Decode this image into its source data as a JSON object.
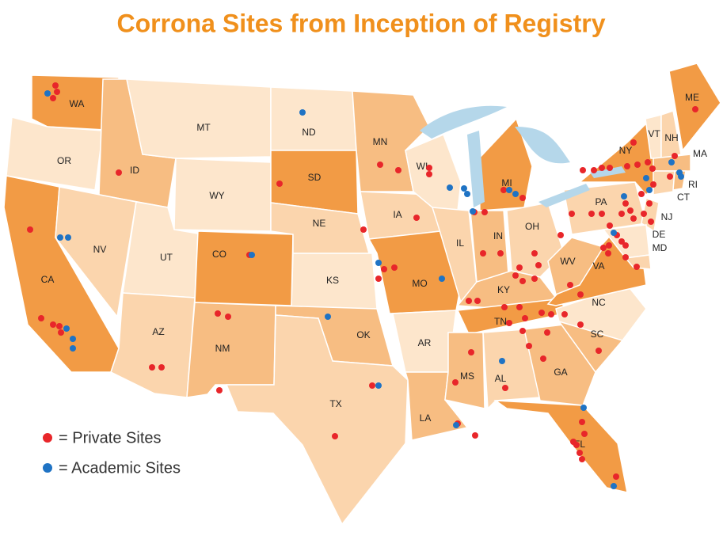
{
  "title": "Corrona Sites from Inception of Registry",
  "states": [
    "WA",
    "OR",
    "CA",
    "ID",
    "NV",
    "MT",
    "WY",
    "UT",
    "AZ",
    "CO",
    "NM",
    "ND",
    "SD",
    "NE",
    "KS",
    "OK",
    "TX",
    "MN",
    "IA",
    "MO",
    "AR",
    "LA",
    "WI",
    "IL",
    "MI",
    "IN",
    "OH",
    "KY",
    "TN",
    "MS",
    "AL",
    "GA",
    "FL",
    "SC",
    "NC",
    "VA",
    "WV",
    "PA",
    "NY",
    "NJ",
    "DE",
    "MD",
    "VT",
    "NH",
    "ME",
    "MA",
    "CT",
    "RI"
  ],
  "legend": {
    "private": "= Private Sites",
    "academic": "= Academic Sites"
  }
}
